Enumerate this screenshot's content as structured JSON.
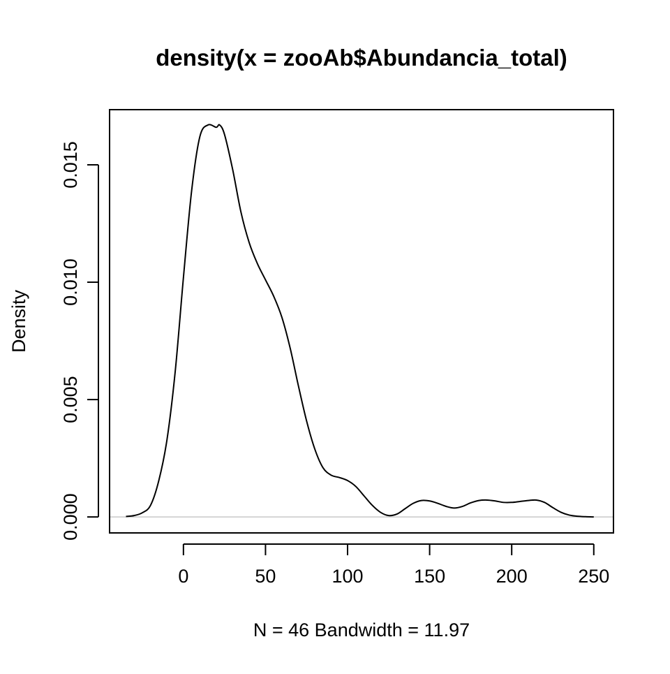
{
  "chart_data": {
    "type": "line",
    "title": "density(x = zooAb$Abundancia_total)",
    "xlabel": "N = 46   Bandwidth = 11.97",
    "ylabel": "Density",
    "xlim": [
      -45,
      262
    ],
    "ylim": [
      -0.00068,
      0.01735
    ],
    "x_ticks": [
      0,
      50,
      100,
      150,
      200,
      250
    ],
    "x_tick_labels": [
      "0",
      "50",
      "100",
      "150",
      "200",
      "250"
    ],
    "y_ticks": [
      0.0,
      0.005,
      0.01,
      0.015
    ],
    "y_tick_labels": [
      "0.000",
      "0.005",
      "0.010",
      "0.015"
    ],
    "grid": false,
    "legend": "none",
    "baseline": 0,
    "colors": {
      "line": "#000000",
      "baseline": "#bebebe",
      "frame": "#000000"
    },
    "series": [
      {
        "x": [
          -35,
          -30,
          -25,
          -20,
          -15,
          -10,
          -5,
          0,
          5,
          10,
          15,
          20,
          22,
          25,
          30,
          35,
          40,
          45,
          50,
          55,
          60,
          65,
          70,
          75,
          80,
          85,
          90,
          95,
          100,
          105,
          110,
          115,
          120,
          125,
          130,
          135,
          140,
          145,
          150,
          155,
          160,
          165,
          170,
          175,
          180,
          185,
          190,
          195,
          200,
          205,
          210,
          215,
          220,
          225,
          230,
          235,
          240,
          245,
          250
        ],
        "y": [
          2e-05,
          6e-05,
          0.00018,
          0.0005,
          0.00155,
          0.0033,
          0.0062,
          0.0102,
          0.0139,
          0.0162,
          0.0167,
          0.0166,
          0.0167,
          0.0163,
          0.0148,
          0.013,
          0.0117,
          0.0108,
          0.0101,
          0.0094,
          0.0085,
          0.0072,
          0.0056,
          0.0041,
          0.0029,
          0.0021,
          0.00178,
          0.00168,
          0.00155,
          0.0013,
          0.0009,
          0.0005,
          0.0002,
          6e-05,
          0.00012,
          0.00035,
          0.00058,
          0.0007,
          0.00068,
          0.00058,
          0.00045,
          0.00038,
          0.00045,
          0.0006,
          0.0007,
          0.00072,
          0.00068,
          0.00062,
          0.00062,
          0.00066,
          0.0007,
          0.00072,
          0.00062,
          0.0004,
          0.0002,
          8e-05,
          3e-05,
          1e-05,
          0.0
        ]
      }
    ]
  }
}
